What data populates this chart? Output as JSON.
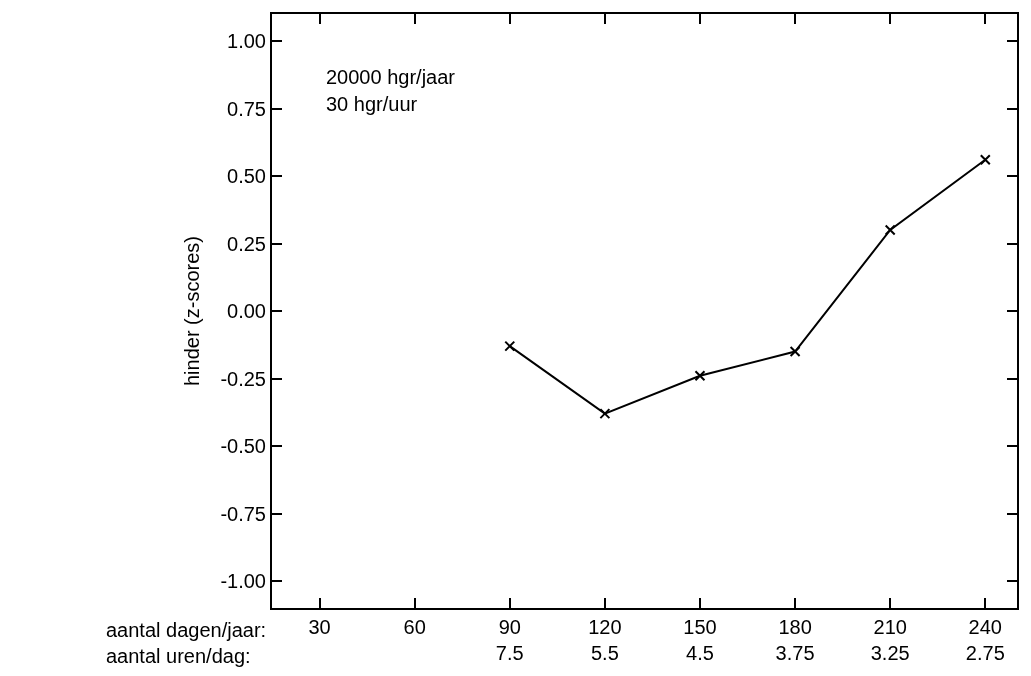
{
  "chart_data": {
    "type": "line",
    "ylabel": "hinder (z-scores)",
    "xlabel": "aantal dagen/jaar:\naantal uren/dag:",
    "x": [
      90,
      120,
      150,
      180,
      210,
      240
    ],
    "values": [
      -0.13,
      -0.38,
      -0.24,
      -0.15,
      0.3,
      0.56
    ],
    "color": "#000000",
    "marker": "cross",
    "line_style": "solid",
    "xlim": [
      15,
      250
    ],
    "xticks": [
      30,
      60,
      {
        "value": 90,
        "label": "90\n7.5"
      },
      {
        "value": 120,
        "label": "120\n5.5"
      },
      {
        "value": 150,
        "label": "150\n4.5"
      },
      {
        "value": 180,
        "label": "180\n3.75"
      },
      {
        "value": 210,
        "label": "210\n3.25"
      },
      {
        "value": 240,
        "label": "240\n2.75"
      }
    ],
    "ylim": [
      -1.1,
      1.1
    ],
    "yticks": [
      {
        "value": -1,
        "label": "-1.00"
      },
      {
        "value": -0.75,
        "label": "-0.75"
      },
      {
        "value": -0.5,
        "label": "-0.50"
      },
      {
        "value": -0.25,
        "label": "-0.25"
      },
      {
        "value": 0,
        "label": "0.00"
      },
      {
        "value": 0.25,
        "label": "0.25"
      },
      {
        "value": 0.5,
        "label": "0.50"
      },
      {
        "value": 0.75,
        "label": "0.75"
      },
      {
        "value": 1,
        "label": "1.00"
      }
    ],
    "legend": false,
    "annotations": [
      "20000 hgr/jaar",
      "30 hgr/uur"
    ]
  }
}
